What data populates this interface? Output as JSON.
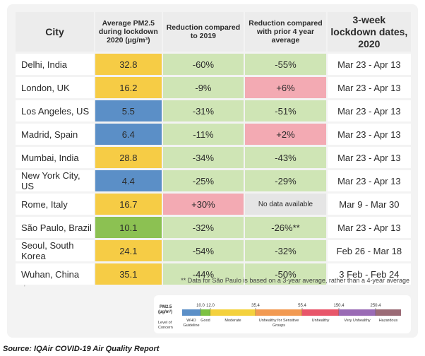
{
  "chart_data": {
    "type": "table",
    "columns": [
      "City",
      "Average PM2.5 during lockdown 2020 (µg/m³)",
      "Reduction compared to 2019",
      "Reduction compared with prior 4 year average",
      "3-week lockdown dates, 2020"
    ],
    "rows": [
      {
        "city": "Delhi, India",
        "pm25": "32.8",
        "vs2019": "-60%",
        "vs4yr": "-55%",
        "dates": "Mar 23 - Apr 13"
      },
      {
        "city": "London, UK",
        "pm25": "16.2",
        "vs2019": "-9%",
        "vs4yr": "+6%",
        "dates": "Mar 23 - Apr 13"
      },
      {
        "city": "Los Angeles, US",
        "pm25": "5.5",
        "vs2019": "-31%",
        "vs4yr": "-51%",
        "dates": "Mar 23 - Apr 13"
      },
      {
        "city": "Madrid, Spain",
        "pm25": "6.4",
        "vs2019": "-11%",
        "vs4yr": "+2%",
        "dates": "Mar 23 - Apr 13"
      },
      {
        "city": "Mumbai, India",
        "pm25": "28.8",
        "vs2019": "-34%",
        "vs4yr": "-43%",
        "dates": "Mar 23 - Apr 13"
      },
      {
        "city": "New York City, US",
        "pm25": "4.4",
        "vs2019": "-25%",
        "vs4yr": "-29%",
        "dates": "Mar 23 - Apr 13"
      },
      {
        "city": "Rome, Italy",
        "pm25": "16.7",
        "vs2019": "+30%",
        "vs4yr": "No data available",
        "dates": "Mar 9 - Mar 30"
      },
      {
        "city": "São Paulo, Brazil",
        "pm25": "10.1",
        "vs2019": "-32%",
        "vs4yr": "-26%**",
        "dates": "Mar 23 - Apr 13"
      },
      {
        "city": "Seoul, South Korea",
        "pm25": "24.1",
        "vs2019": "-54%",
        "vs4yr": "-32%",
        "dates": "Feb 26 - Mar 18"
      },
      {
        "city": "Wuhan, China",
        "pm25": "35.1",
        "vs2019": "-44%",
        "vs4yr": "-50%",
        "dates": "3 Feb - Feb 24"
      }
    ],
    "footnote": "** Data for São Paulo is based on a 3-year average, rather than a 4-year average",
    "legend": {
      "title_line1": "PM2.5",
      "title_line2": "(µg/m³)",
      "concern_line1": "Level of",
      "concern_line2": "Concern",
      "breakpoints": [
        "10.0",
        "12.0",
        "35.4",
        "55.4",
        "150.4",
        "250.4"
      ],
      "categories": [
        {
          "label": "WHO Guideline",
          "color": "#5b8fc7"
        },
        {
          "label": "Good",
          "color": "#7cc142"
        },
        {
          "label": "Moderate",
          "color": "#f4d13d"
        },
        {
          "label": "Unhealthy for Sensitive Groups",
          "color": "#f29a52"
        },
        {
          "label": "Unhealthy",
          "color": "#e8566a"
        },
        {
          "label": "Very Unhealthy",
          "color": "#9a6bb5"
        },
        {
          "label": "Hazardous",
          "color": "#9b6b76"
        }
      ]
    },
    "colors": {
      "pm_moderate": "#f6cc45",
      "pm_good": "#8cc152",
      "pm_who": "#5b8fc7",
      "reduction_green": "#cfe5b5",
      "increase_pink": "#f3aab3",
      "nodata_gray": "#e5e5e5"
    }
  },
  "source": "Source: IQAir COVID-19 Air Quality Report"
}
